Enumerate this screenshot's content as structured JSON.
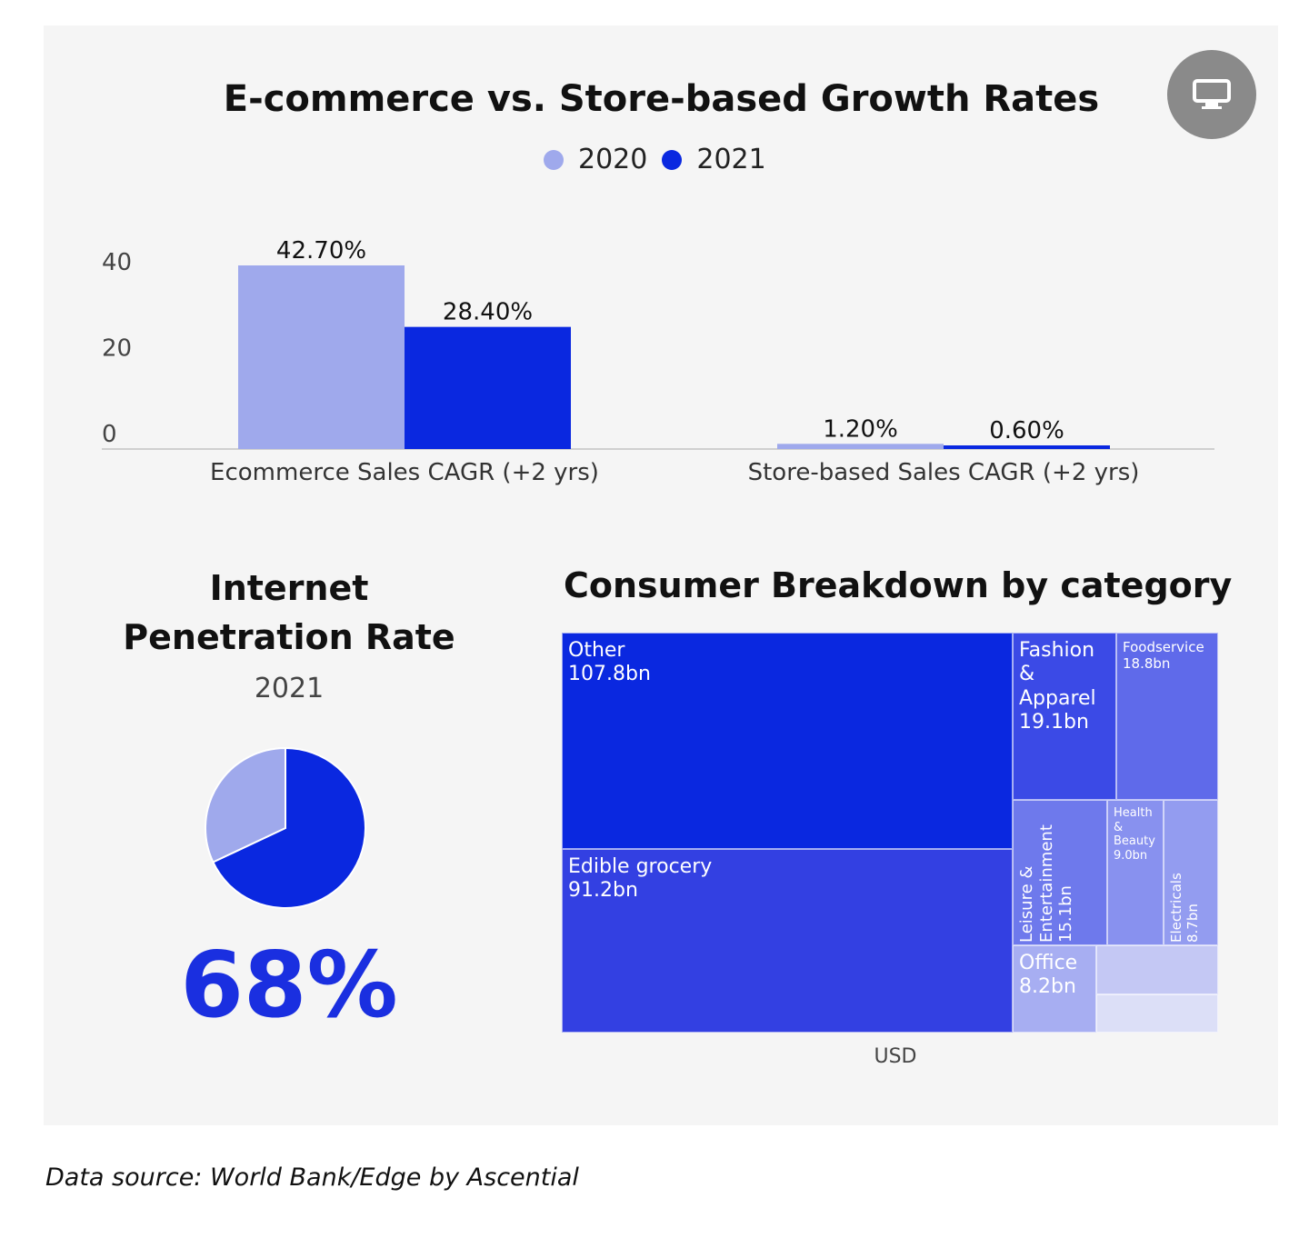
{
  "chart_data": [
    {
      "type": "bar",
      "title": "E-commerce vs. Store-based Growth Rates",
      "categories": [
        "Ecommerce Sales CAGR (+2 yrs)",
        "Store-based Sales CAGR (+2 yrs)"
      ],
      "series": [
        {
          "name": "2020",
          "values": [
            42.7,
            1.2
          ],
          "labels": [
            "42.70%",
            "1.20%"
          ],
          "color": "#9fa9ec"
        },
        {
          "name": "2021",
          "values": [
            28.4,
            0.6
          ],
          "labels": [
            "28.40%",
            "0.60%"
          ],
          "color": "#0a28e0"
        }
      ],
      "yticks": [
        "0",
        "20",
        "40"
      ],
      "ylim": [
        0,
        45
      ],
      "grid": false,
      "legend": "top-center"
    },
    {
      "type": "pie",
      "title": "Internet Penetration Rate",
      "subtitle": "2021",
      "values": [
        68,
        32
      ],
      "colors": [
        "#0a28e0",
        "#9fa9ec"
      ],
      "value_label": "68%"
    },
    {
      "type": "treemap",
      "title": "Consumer Breakdown by category",
      "xlabel": "USD",
      "items": [
        {
          "name": "Other",
          "value_label": "107.8bn",
          "value": 107.8,
          "color": "#0a28e0"
        },
        {
          "name": "Edible grocery",
          "value_label": "91.2bn",
          "value": 91.2,
          "color": "#3340e2"
        },
        {
          "name": "Fashion & Apparel",
          "value_label": "19.1bn",
          "value": 19.1,
          "color": "#3b4ae6"
        },
        {
          "name": "Foodservice",
          "value_label": "18.8bn",
          "value": 18.8,
          "color": "#5f6aea"
        },
        {
          "name": "Leisure & Entertainment",
          "value_label": "15.1bn",
          "value": 15.1,
          "color": "#6e79ec"
        },
        {
          "name": "Health & Beauty",
          "value_label": "9.0bn",
          "value": 9.0,
          "color": "#8891ef"
        },
        {
          "name": "Electricals",
          "value_label": "8.7bn",
          "value": 8.7,
          "color": "#939cf0"
        },
        {
          "name": "Office",
          "value_label": "8.2bn",
          "value": 8.2,
          "color": "#a7aef2"
        },
        {
          "name": "",
          "value_label": "",
          "value": 0,
          "color": "#c4c8f4"
        },
        {
          "name": "",
          "value_label": "",
          "value": 0,
          "color": "#dcdff7"
        }
      ]
    }
  ],
  "colors": {
    "panel_bg": "#f5f5f5",
    "accent": "#1a2fe0",
    "light": "#9fa9ec",
    "button": "#8a8a8a"
  },
  "header": {
    "title": "E-commerce vs. Store-based Growth Rates",
    "button_icon": "monitor-icon"
  },
  "legend": [
    {
      "label": "2020",
      "color": "#9fa9ec"
    },
    {
      "label": "2021",
      "color": "#0a28e0"
    }
  ],
  "ipr": {
    "title_line1": "Internet",
    "title_line2": "Penetration Rate",
    "year": "2021",
    "value": "68%"
  },
  "treemap": {
    "title": "Consumer Breakdown by category",
    "unit": "USD"
  },
  "footer": {
    "source": "Data source: World Bank/Edge by Ascential"
  }
}
